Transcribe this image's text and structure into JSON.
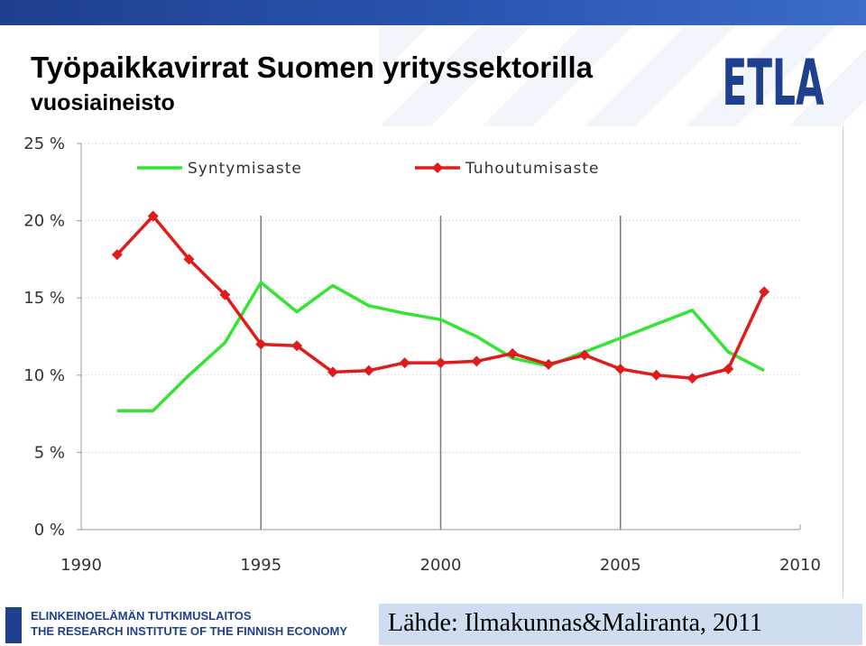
{
  "header": {
    "title": "Työpaikkavirrat Suomen yrityssektorilla",
    "subtitle": "vuosiaineisto",
    "logo_text": "ETLA"
  },
  "colors": {
    "brand_blue": "#1f3f8f",
    "syntymisaste": "#33e533",
    "tuhoutumisaste": "#e01b1b"
  },
  "chart_data": {
    "type": "line",
    "title": "",
    "xlabel": "",
    "ylabel": "",
    "xlim": [
      1990,
      2010
    ],
    "ylim": [
      0,
      25
    ],
    "x_ticks": [
      "1990",
      "1995",
      "2000",
      "2005",
      "2010"
    ],
    "y_ticks": [
      "0 %",
      "5 %",
      "10 %",
      "15 %",
      "20 %",
      "25 %"
    ],
    "x_tick_values": [
      1990,
      1995,
      2000,
      2005,
      2010
    ],
    "y_tick_values": [
      0,
      5,
      10,
      15,
      20,
      25
    ],
    "grid": "vertical lines at 1995, 2000, 2005; dotted horizontal lines",
    "legend_position": "top",
    "series": [
      {
        "name": "Syntymisaste",
        "color": "#33e533",
        "markers": false,
        "x": [
          1991,
          1992,
          1993,
          1994,
          1995,
          1996,
          1997,
          1998,
          1999,
          2000,
          2001,
          2002,
          2003,
          2004,
          2005,
          2006,
          2007,
          2008,
          2009
        ],
        "y": [
          7.7,
          7.7,
          10.0,
          12.1,
          16.0,
          14.1,
          15.8,
          14.5,
          14.0,
          13.6,
          12.5,
          11.1,
          10.6,
          11.5,
          12.4,
          13.3,
          14.2,
          11.5,
          10.3
        ]
      },
      {
        "name": "Tuhoutumisaste",
        "color": "#e01b1b",
        "markers": true,
        "x": [
          1991,
          1992,
          1993,
          1994,
          1995,
          1996,
          1997,
          1998,
          1999,
          2000,
          2001,
          2002,
          2003,
          2004,
          2005,
          2006,
          2007,
          2008,
          2009
        ],
        "y": [
          17.8,
          20.3,
          17.5,
          15.2,
          12.0,
          11.9,
          10.2,
          10.3,
          10.8,
          10.8,
          10.9,
          11.4,
          10.7,
          11.3,
          10.4,
          10.0,
          9.8,
          10.4,
          15.4
        ]
      }
    ]
  },
  "footer": {
    "institute_fi": "ELINKEINOELÄMÄN TUTKIMUSLAITOS",
    "institute_en": "THE RESEARCH INSTITUTE OF THE FINNISH ECONOMY",
    "source": "Lähde: Ilmakunnas&Maliranta, 2011"
  }
}
